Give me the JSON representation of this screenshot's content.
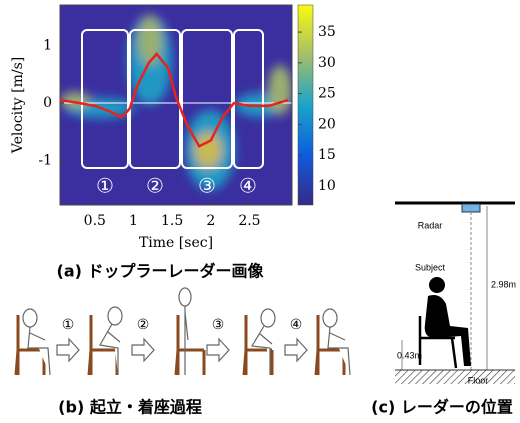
{
  "panel_a": {
    "y_label": "Velocity [m/s]",
    "x_label": "Time [sec]",
    "caption": "(a) ドップラーレーダー画像",
    "xlim": [
      0.05,
      3.05
    ],
    "ylim": [
      -1.77,
      1.7
    ],
    "xticks": [
      0.5,
      1,
      1.5,
      2,
      2.5
    ],
    "yticks": [
      -1,
      0,
      1
    ],
    "colorbar": {
      "lim": [
        6.9,
        39.4
      ],
      "ticks": [
        10,
        15,
        20,
        25,
        30,
        35
      ]
    },
    "phase_labels": [
      "①",
      "②",
      "③",
      "④"
    ],
    "curve": {
      "color": "#e8231a",
      "x": [
        0.05,
        0.3,
        0.5,
        0.7,
        0.85,
        0.95,
        1.05,
        1.2,
        1.3,
        1.45,
        1.55,
        1.7,
        1.85,
        2.0,
        2.15,
        2.3,
        2.5,
        2.75,
        3.0
      ],
      "values": [
        0.05,
        0.0,
        -0.05,
        -0.15,
        -0.25,
        -0.1,
        0.3,
        0.7,
        0.85,
        0.6,
        0.1,
        -0.4,
        -0.75,
        -0.65,
        -0.25,
        0.0,
        -0.05,
        -0.05,
        0.05
      ]
    }
  },
  "panel_b": {
    "caption": "(b) 起立・着座過程",
    "step_labels": [
      "①",
      "②",
      "③",
      "④"
    ]
  },
  "panel_c": {
    "caption": "(c) レーダーの位置",
    "radar": "Radar",
    "subject": "Subject",
    "height": "2.98m",
    "seat_height": "0.43m",
    "floor": "Floor"
  }
}
